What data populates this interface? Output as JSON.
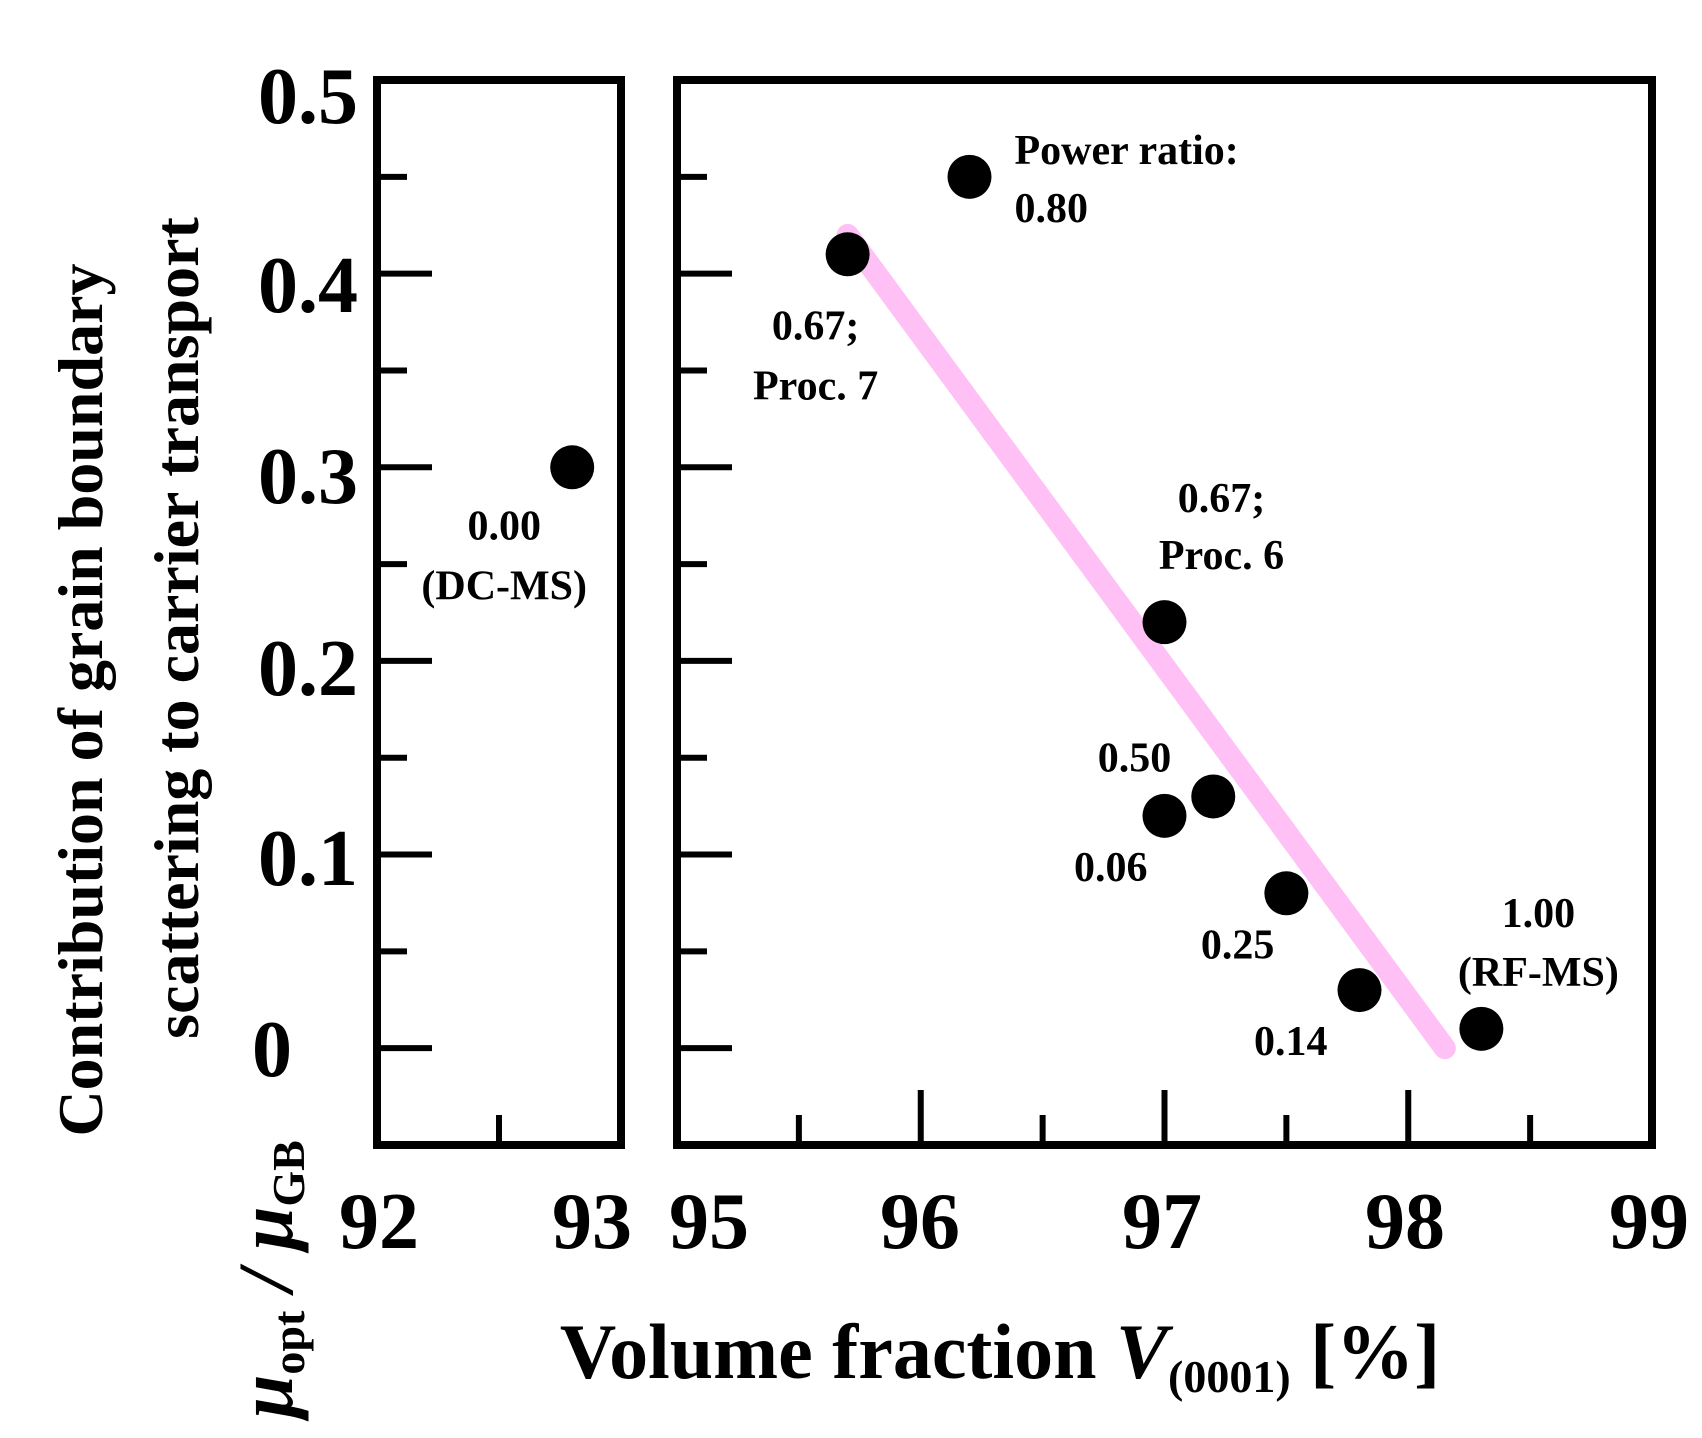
{
  "chart_data": {
    "type": "scatter",
    "y_axis": {
      "label_line1": "Contribution of grain boundary",
      "label_line2": "scattering to carrier transport",
      "symbol_main": "μ",
      "symbol_sub1": "opt",
      "symbol_slash": " / ",
      "symbol_main2": "μ",
      "symbol_sub2": "GB",
      "ylim": [
        -0.05,
        0.5
      ],
      "ticks": [
        0,
        0.1,
        0.2,
        0.3,
        0.4,
        0.5
      ],
      "tick_labels": [
        "0",
        "0.1",
        "0.2",
        "0.3",
        "0.4",
        "0.5"
      ]
    },
    "x_axis": {
      "label_main": "Volume fraction ",
      "label_var": "V",
      "label_sub": "(0001)",
      "label_unit": " [%]"
    },
    "panels": [
      {
        "name": "left",
        "xlim": [
          92,
          93
        ],
        "major_ticks": [
          92,
          93
        ],
        "tick_labels": [
          "92",
          "93"
        ],
        "minor_ticks": [
          92.5
        ],
        "points": [
          {
            "x": 92.8,
            "y": 0.3,
            "label_line1": "0.00",
            "label_line2": "(DC-MS)"
          }
        ]
      },
      {
        "name": "right",
        "xlim": [
          95,
          99
        ],
        "major_ticks": [
          95,
          96,
          97,
          98,
          99
        ],
        "tick_labels": [
          "95",
          "96",
          "97",
          "98",
          "99"
        ],
        "minor_ticks": [
          95.5,
          96.5,
          97.5,
          98.5
        ],
        "points": [
          {
            "x": 96.2,
            "y": 0.45,
            "label_line1": "Power ratio:",
            "label_line2": "0.80"
          },
          {
            "x": 95.7,
            "y": 0.41,
            "label_line1": "0.67;",
            "label_line2": "Proc. 7"
          },
          {
            "x": 97.0,
            "y": 0.22,
            "label_line1": "0.67;",
            "label_line2": "Proc. 6"
          },
          {
            "x": 97.2,
            "y": 0.13,
            "label_line1": "0.50",
            "label_line2": ""
          },
          {
            "x": 97.0,
            "y": 0.12,
            "label_line1": "0.06",
            "label_line2": ""
          },
          {
            "x": 97.5,
            "y": 0.08,
            "label_line1": "0.25",
            "label_line2": ""
          },
          {
            "x": 97.8,
            "y": 0.03,
            "label_line1": "0.14",
            "label_line2": ""
          },
          {
            "x": 98.3,
            "y": 0.01,
            "label_line1": "1.00",
            "label_line2": "(RF-MS)"
          }
        ],
        "trend_line": {
          "x": [
            95.7,
            98.15
          ],
          "y": [
            0.42,
            0.0
          ],
          "color": "#ffc0f5"
        }
      }
    ],
    "marker_color": "#000000"
  }
}
